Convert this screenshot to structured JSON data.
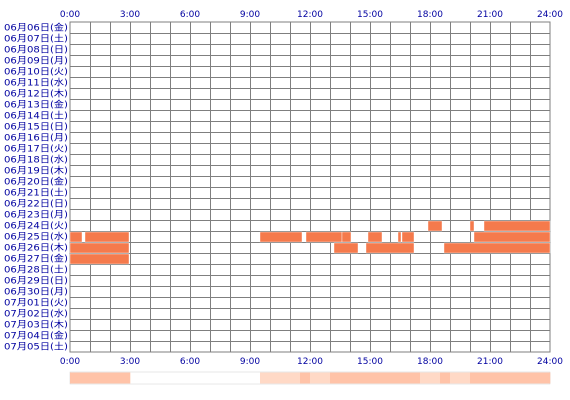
{
  "chart_data": {
    "type": "heatmap",
    "x_unit": "hour of day",
    "x_range": [
      0,
      24
    ],
    "x_ticks": [
      "0:00",
      "3:00",
      "6:00",
      "9:00",
      "12:00",
      "15:00",
      "18:00",
      "21:00",
      "24:00"
    ],
    "rows": [
      "06月06日(金)",
      "06月07日(土)",
      "06月08日(日)",
      "06月09日(月)",
      "06月10日(火)",
      "06月11日(水)",
      "06月12日(木)",
      "06月13日(金)",
      "06月14日(土)",
      "06月15日(日)",
      "06月16日(月)",
      "06月17日(火)",
      "06月18日(水)",
      "06月19日(木)",
      "06月20日(金)",
      "06月21日(土)",
      "06月22日(日)",
      "06月23日(月)",
      "06月24日(火)",
      "06月25日(水)",
      "06月26日(木)",
      "06月27日(金)",
      "06月28日(土)",
      "06月29日(日)",
      "06月30日(月)",
      "07月01日(火)",
      "07月02日(水)",
      "07月03日(木)",
      "07月04日(金)",
      "07月05日(土)"
    ],
    "activity": [
      {
        "row": "06月24日(火)",
        "blocks": [
          [
            17.9,
            18.6
          ],
          [
            20.0,
            20.2
          ],
          [
            20.7,
            24.0
          ]
        ]
      },
      {
        "row": "06月25日(水)",
        "blocks": [
          [
            0.0,
            0.6
          ],
          [
            0.75,
            2.95
          ],
          [
            9.5,
            11.6
          ],
          [
            11.8,
            13.6
          ],
          [
            13.6,
            14.05
          ],
          [
            14.9,
            15.6
          ],
          [
            16.4,
            16.55
          ],
          [
            16.6,
            17.2
          ],
          [
            20.2,
            24.0
          ]
        ]
      },
      {
        "row": "06月26日(木)",
        "blocks": [
          [
            0.0,
            2.95
          ],
          [
            13.2,
            14.4
          ],
          [
            14.8,
            17.2
          ],
          [
            18.7,
            24.0
          ]
        ]
      },
      {
        "row": "06月27日(金)",
        "blocks": [
          [
            0.0,
            2.95
          ]
        ]
      }
    ],
    "colors": {
      "activity": "#f57a4c",
      "activity_edge": "#ffffff",
      "grid": "#7f7f7f",
      "background": "#ffffff",
      "summary_light": "#ffd9c6",
      "summary_medium": "#ffc3a8",
      "labels": "#0000a0"
    }
  }
}
